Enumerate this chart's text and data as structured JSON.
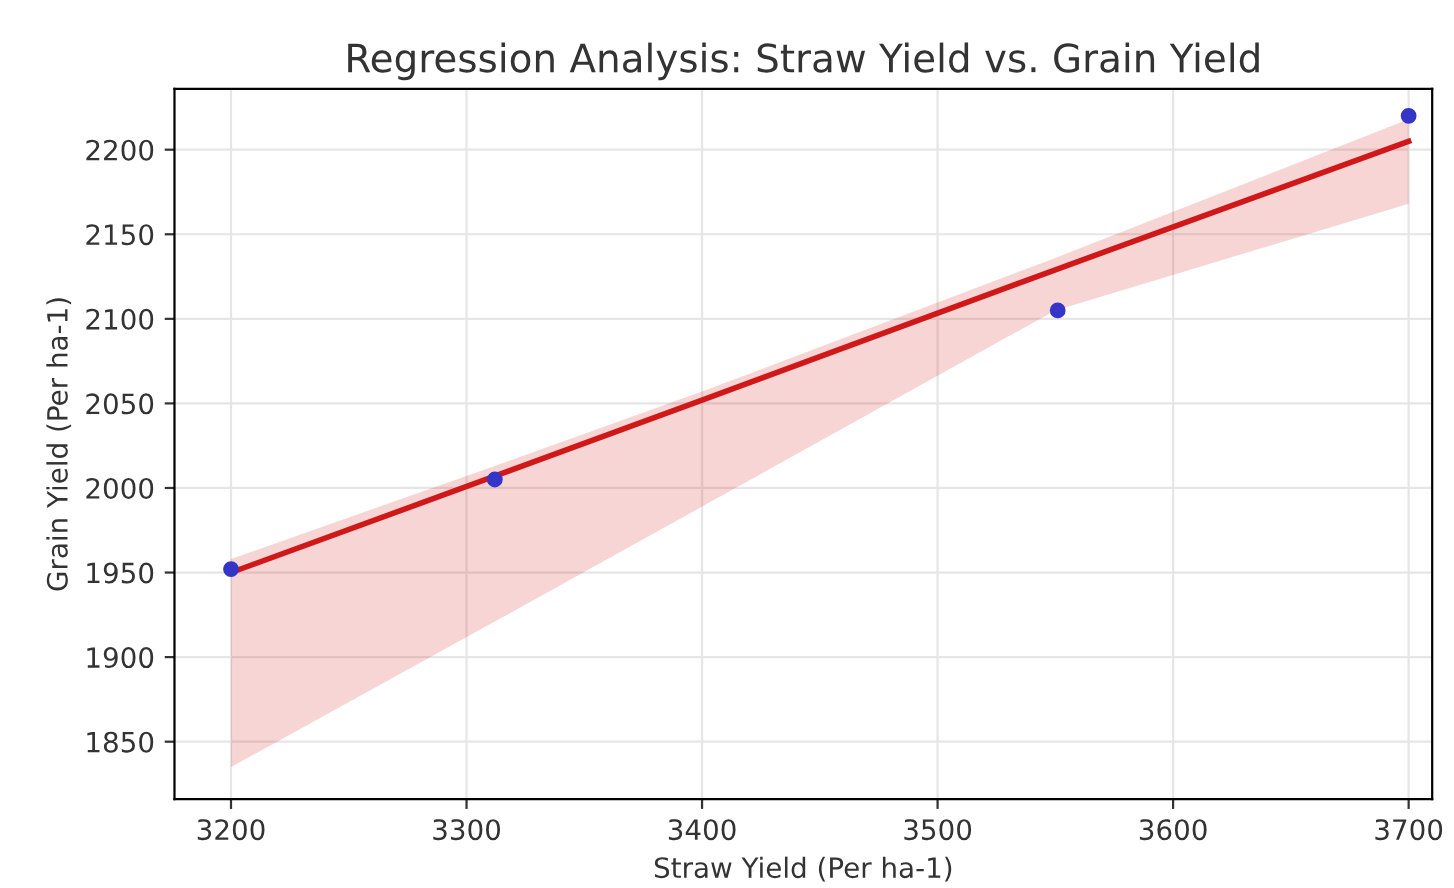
{
  "chart_data": {
    "type": "scatter",
    "title": "Regression Analysis: Straw Yield vs. Grain Yield",
    "xlabel": "Straw Yield (Per ha-1)",
    "ylabel": "Grain Yield (Per ha-1)",
    "series": [
      {
        "color": "#3535c8",
        "marker": "circle",
        "x": [
          3200,
          3312,
          3551,
          3700
        ],
        "values": [
          1952,
          2005,
          2105,
          2220
        ]
      },
      {
        "type": "line",
        "color": "#d01818",
        "x": [
          3200,
          3312,
          3400,
          3550,
          3700
        ],
        "values": [
          1950,
          2007,
          2052,
          2129,
          2205
        ],
        "lower": [
          1835,
          1921,
          1989,
          2105,
          2168
        ],
        "upper": [
          1958,
          2013,
          2057,
          2136,
          2218
        ]
      }
    ],
    "xlim": [
      3176,
      3710
    ],
    "ylim": [
      1816,
      2236
    ],
    "xticks": [
      3200,
      3300,
      3400,
      3500,
      3600,
      3700
    ],
    "yticks": [
      1850,
      1900,
      1950,
      2000,
      2050,
      2100,
      2150,
      2200
    ],
    "grid": true,
    "line_style": "solid"
  }
}
